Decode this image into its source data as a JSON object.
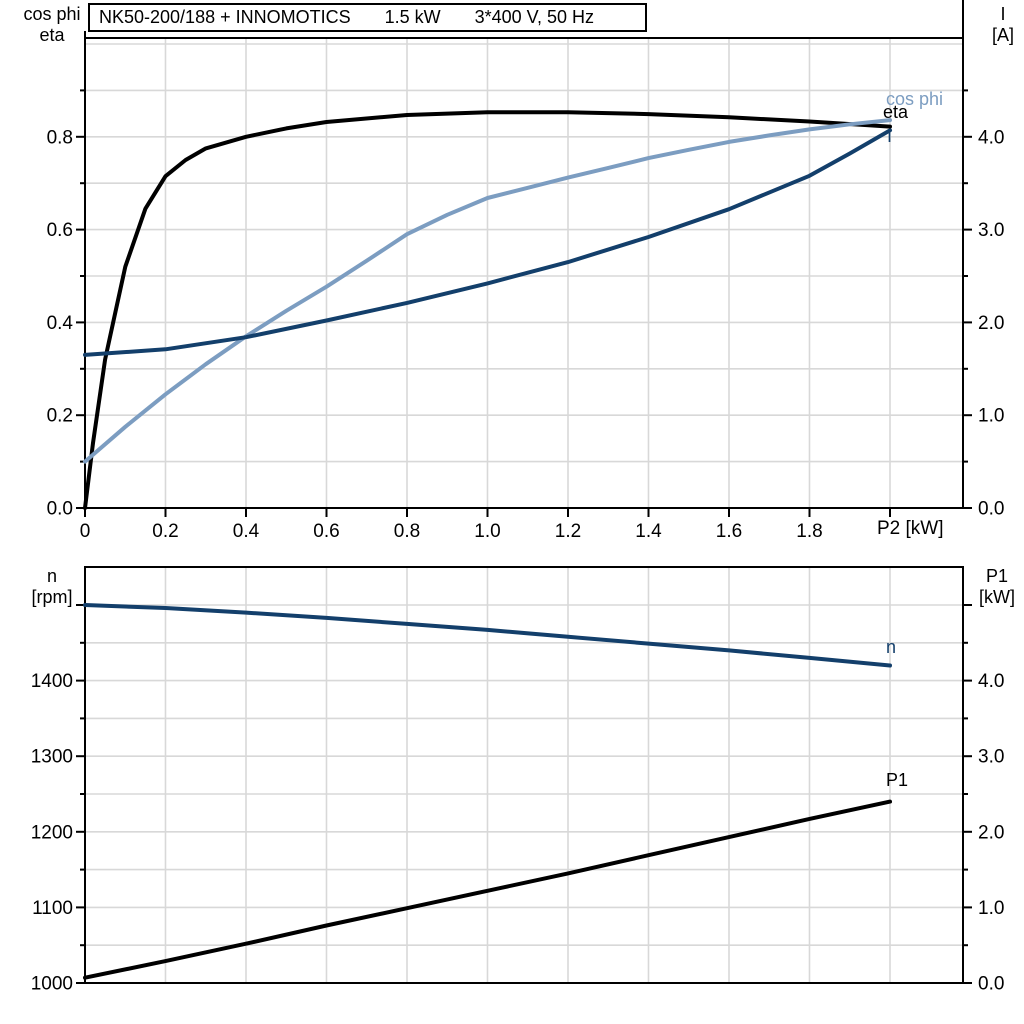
{
  "title": {
    "full": "NK50-200/188 + INNOMOTICS   1.5 kW   3*400 V, 50 Hz",
    "parts": [
      "NK50-200/188 + INNOMOTICS",
      "1.5 kW",
      "3*400 V, 50 Hz"
    ]
  },
  "colors": {
    "black": "#000000",
    "dark_blue": "#133F6B",
    "light_blue": "#7C9DC1",
    "grid": "#D8D8D8"
  },
  "top_chart": {
    "left_axis_label": {
      "line1": "cos phi",
      "line2": "eta"
    },
    "right_axis_label": {
      "line1": "I",
      "line2": "[A]"
    },
    "x_axis_label": "P2 [kW]",
    "curve_labels": {
      "cos_phi": "cos phi",
      "eta": "eta",
      "current": "I"
    },
    "chart_data": {
      "type": "line",
      "xlabel": "P2 [kW]",
      "x": {
        "range": [
          0,
          2.0
        ],
        "grid_step": 0.2,
        "ticks": [
          {
            "v": 0,
            "label": "0"
          },
          {
            "v": 0.2,
            "label": "0.2"
          },
          {
            "v": 0.4,
            "label": "0.4"
          },
          {
            "v": 0.6,
            "label": "0.6"
          },
          {
            "v": 0.8,
            "label": "0.8"
          },
          {
            "v": 1.0,
            "label": "1.0"
          },
          {
            "v": 1.2,
            "label": "1.2"
          },
          {
            "v": 1.4,
            "label": "1.4"
          },
          {
            "v": 1.6,
            "label": "1.6"
          },
          {
            "v": 1.8,
            "label": "1.8"
          },
          {
            "v": 2.0,
            "label": ""
          }
        ]
      },
      "left_axis": {
        "name": "cos phi / eta",
        "range": [
          0,
          1.0
        ],
        "grid_step": 0.1,
        "minor_step": 0.1,
        "ticks": [
          {
            "v": 0.0,
            "label": "0.0"
          },
          {
            "v": 0.2,
            "label": "0.2"
          },
          {
            "v": 0.4,
            "label": "0.4"
          },
          {
            "v": 0.6,
            "label": "0.6"
          },
          {
            "v": 0.8,
            "label": "0.8"
          }
        ]
      },
      "right_axis": {
        "name": "I [A]",
        "range": [
          0,
          5.0
        ],
        "minor_step": 0.5,
        "ticks": [
          {
            "v": 0.0,
            "label": "0.0"
          },
          {
            "v": 1.0,
            "label": "1.0"
          },
          {
            "v": 2.0,
            "label": "2.0"
          },
          {
            "v": 3.0,
            "label": "3.0"
          },
          {
            "v": 4.0,
            "label": "4.0"
          }
        ]
      },
      "series": [
        {
          "name": "eta",
          "axis": "left",
          "color": "#000000",
          "points": [
            [
              0,
              0
            ],
            [
              0.02,
              0.14
            ],
            [
              0.05,
              0.32
            ],
            [
              0.08,
              0.44
            ],
            [
              0.1,
              0.52
            ],
            [
              0.15,
              0.645
            ],
            [
              0.2,
              0.715
            ],
            [
              0.25,
              0.75
            ],
            [
              0.3,
              0.775
            ],
            [
              0.4,
              0.8
            ],
            [
              0.5,
              0.818
            ],
            [
              0.6,
              0.832
            ],
            [
              0.8,
              0.847
            ],
            [
              1.0,
              0.853
            ],
            [
              1.2,
              0.853
            ],
            [
              1.4,
              0.849
            ],
            [
              1.6,
              0.842
            ],
            [
              1.8,
              0.833
            ],
            [
              2.0,
              0.822
            ]
          ]
        },
        {
          "name": "cos phi",
          "axis": "left",
          "color": "#7C9DC1",
          "points": [
            [
              0,
              0.1
            ],
            [
              0.1,
              0.175
            ],
            [
              0.2,
              0.245
            ],
            [
              0.3,
              0.31
            ],
            [
              0.4,
              0.37
            ],
            [
              0.5,
              0.425
            ],
            [
              0.6,
              0.477
            ],
            [
              0.7,
              0.533
            ],
            [
              0.8,
              0.59
            ],
            [
              0.9,
              0.632
            ],
            [
              1.0,
              0.668
            ],
            [
              1.1,
              0.69
            ],
            [
              1.2,
              0.712
            ],
            [
              1.3,
              0.733
            ],
            [
              1.4,
              0.754
            ],
            [
              1.5,
              0.772
            ],
            [
              1.6,
              0.789
            ],
            [
              1.7,
              0.803
            ],
            [
              1.8,
              0.816
            ],
            [
              1.9,
              0.827
            ],
            [
              2.0,
              0.836
            ]
          ]
        },
        {
          "name": "I",
          "axis": "right",
          "color": "#133F6B",
          "points": [
            [
              0,
              1.65
            ],
            [
              0.2,
              1.71
            ],
            [
              0.4,
              1.84
            ],
            [
              0.6,
              2.02
            ],
            [
              0.8,
              2.21
            ],
            [
              1.0,
              2.42
            ],
            [
              1.2,
              2.65
            ],
            [
              1.4,
              2.92
            ],
            [
              1.6,
              3.22
            ],
            [
              1.8,
              3.58
            ],
            [
              1.9,
              3.82
            ],
            [
              2.0,
              4.07
            ]
          ]
        }
      ]
    }
  },
  "bottom_chart": {
    "left_axis_label": {
      "line1": "n",
      "line2": "[rpm]"
    },
    "right_axis_label": {
      "line1": "P1",
      "line2": "[kW]"
    },
    "curve_labels": {
      "n": "n",
      "p1": "P1"
    },
    "chart_data": {
      "type": "line",
      "xlabel": "P2 [kW]",
      "x": {
        "range": [
          0,
          2.0
        ],
        "grid_step": 0.2,
        "ticks": []
      },
      "left_axis": {
        "name": "n [rpm]",
        "range": [
          1000,
          1550
        ],
        "grid_step": 50,
        "minor_step": 50,
        "ticks": [
          {
            "v": 1000,
            "label": "1000"
          },
          {
            "v": 1100,
            "label": "1100"
          },
          {
            "v": 1200,
            "label": "1200"
          },
          {
            "v": 1300,
            "label": "1300"
          },
          {
            "v": 1400,
            "label": "1400"
          },
          {
            "v": 1500,
            "label": ""
          }
        ]
      },
      "right_axis": {
        "name": "P1 [kW]",
        "range": [
          0,
          5.5
        ],
        "minor_step": 0.5,
        "ticks": [
          {
            "v": 0.0,
            "label": "0.0"
          },
          {
            "v": 1.0,
            "label": "1.0"
          },
          {
            "v": 2.0,
            "label": "2.0"
          },
          {
            "v": 3.0,
            "label": "3.0"
          },
          {
            "v": 4.0,
            "label": "4.0"
          },
          {
            "v": 5.0,
            "label": ""
          }
        ]
      },
      "series": [
        {
          "name": "n",
          "axis": "left",
          "color": "#133F6B",
          "points": [
            [
              0,
              1500
            ],
            [
              0.2,
              1496
            ],
            [
              0.4,
              1490
            ],
            [
              0.6,
              1483
            ],
            [
              0.8,
              1475
            ],
            [
              1.0,
              1467
            ],
            [
              1.2,
              1458
            ],
            [
              1.4,
              1449
            ],
            [
              1.6,
              1440
            ],
            [
              1.8,
              1430
            ],
            [
              2.0,
              1420
            ]
          ]
        },
        {
          "name": "P1",
          "axis": "right",
          "color": "#000000",
          "points": [
            [
              0,
              0.07
            ],
            [
              0.2,
              0.29
            ],
            [
              0.4,
              0.52
            ],
            [
              0.6,
              0.76
            ],
            [
              0.8,
              0.99
            ],
            [
              1.0,
              1.22
            ],
            [
              1.2,
              1.45
            ],
            [
              1.4,
              1.69
            ],
            [
              1.6,
              1.93
            ],
            [
              1.8,
              2.17
            ],
            [
              2.0,
              2.4
            ]
          ]
        }
      ]
    }
  }
}
